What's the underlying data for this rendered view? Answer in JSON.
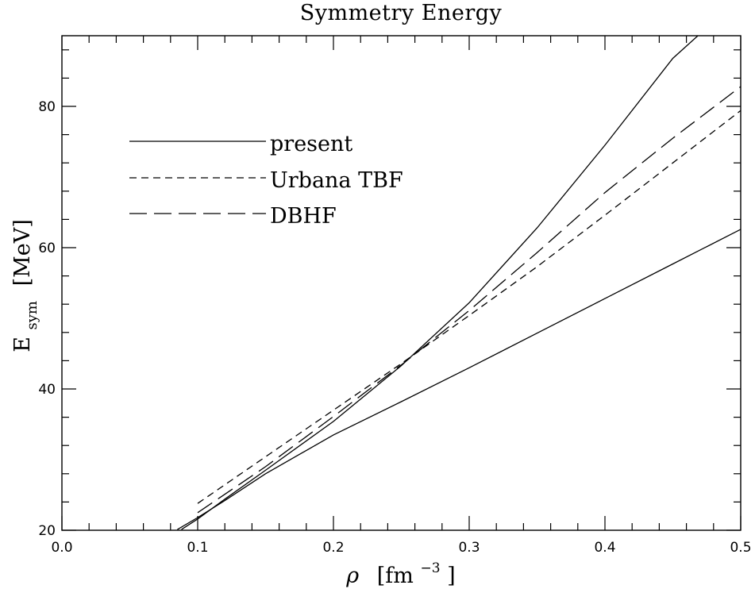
{
  "chart_data": {
    "type": "line",
    "title": "Symmetry Energy",
    "xlabel": {
      "symbol": "ρ",
      "unit_open": "[fm",
      "unit_exp": "−3",
      "unit_close": "]"
    },
    "ylabel": {
      "base": "E",
      "sub": "sym",
      "unit": "[MeV]"
    },
    "xlim": [
      0.0,
      0.5
    ],
    "ylim": [
      20,
      90
    ],
    "x_ticks": [
      "0.0",
      "0.1",
      "0.2",
      "0.3",
      "0.4",
      "0.5"
    ],
    "y_ticks": [
      "20",
      "40",
      "60",
      "80"
    ],
    "x_minor_step": 0.02,
    "y_minor_step": 4,
    "grid": false,
    "legend_position": "upper-left",
    "series": [
      {
        "name": "present",
        "dash": "solid",
        "points": [
          [
            0.085,
            20.1
          ],
          [
            0.1,
            21.8
          ],
          [
            0.12,
            24.2
          ],
          [
            0.15,
            28.0
          ],
          [
            0.2,
            33.5
          ],
          [
            0.25,
            38.2
          ],
          [
            0.3,
            43.0
          ],
          [
            0.35,
            47.9
          ],
          [
            0.4,
            52.8
          ],
          [
            0.45,
            57.7
          ],
          [
            0.5,
            62.6
          ]
        ]
      },
      {
        "name": "",
        "dash": "solid",
        "points": [
          [
            0.088,
            20.1
          ],
          [
            0.1,
            21.6
          ],
          [
            0.12,
            24.4
          ],
          [
            0.15,
            28.5
          ],
          [
            0.2,
            35.4
          ],
          [
            0.25,
            43.3
          ],
          [
            0.3,
            52.2
          ],
          [
            0.35,
            62.8
          ],
          [
            0.4,
            74.5
          ],
          [
            0.45,
            86.8
          ],
          [
            0.48,
            92.0
          ]
        ]
      },
      {
        "name": "Urbana TBF",
        "dash": "short",
        "points": [
          [
            0.1,
            23.8
          ],
          [
            0.15,
            30.4
          ],
          [
            0.2,
            37.0
          ],
          [
            0.25,
            43.6
          ],
          [
            0.3,
            50.4
          ],
          [
            0.35,
            57.3
          ],
          [
            0.4,
            64.6
          ],
          [
            0.45,
            72.0
          ],
          [
            0.5,
            79.4
          ]
        ]
      },
      {
        "name": "DBHF",
        "dash": "long",
        "points": [
          [
            0.1,
            22.5
          ],
          [
            0.15,
            29.0
          ],
          [
            0.2,
            36.1
          ],
          [
            0.25,
            43.4
          ],
          [
            0.3,
            51.1
          ],
          [
            0.35,
            59.3
          ],
          [
            0.4,
            67.8
          ],
          [
            0.45,
            75.5
          ],
          [
            0.5,
            82.8
          ]
        ]
      }
    ]
  }
}
